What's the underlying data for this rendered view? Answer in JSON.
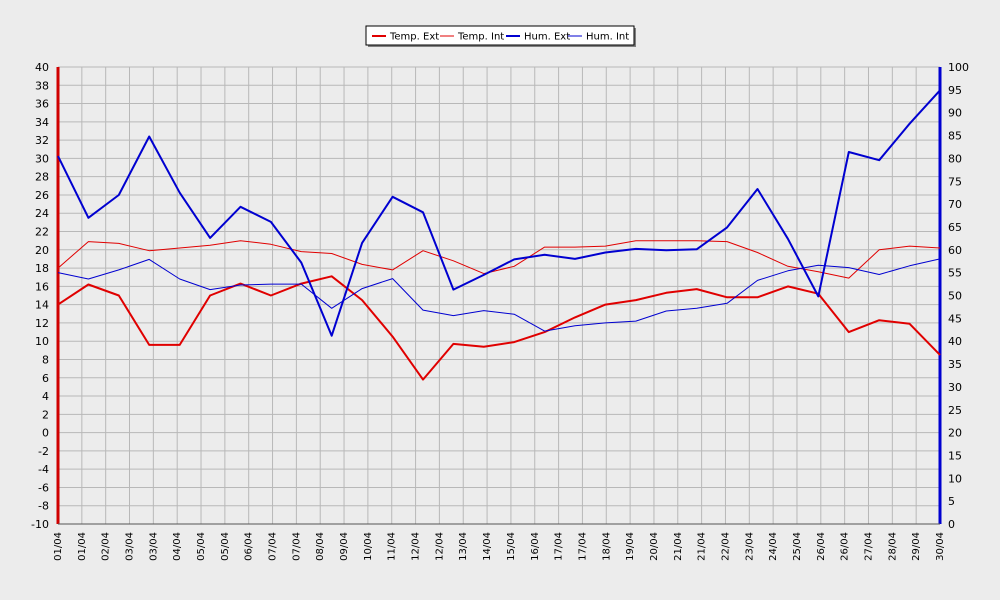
{
  "chart_data": {
    "type": "line",
    "categories": [
      "01/04",
      "01/04",
      "02/04",
      "03/04",
      "03/04",
      "04/04",
      "05/04",
      "05/04",
      "06/04",
      "07/04",
      "07/04",
      "08/04",
      "09/04",
      "10/04",
      "11/04",
      "12/04",
      "12/04",
      "13/04",
      "14/04",
      "15/04",
      "16/04",
      "17/04",
      "17/04",
      "18/04",
      "19/04",
      "20/04",
      "21/04",
      "21/04",
      "22/04",
      "23/04",
      "24/04",
      "25/04",
      "26/04",
      "26/04",
      "27/04",
      "28/04",
      "29/04",
      "30/04"
    ],
    "left_axis": {
      "min": -10,
      "max": 40,
      "step": 2
    },
    "right_axis": {
      "min": 0,
      "max": 100,
      "step": 5
    },
    "grid": true,
    "legend": {
      "placement": "top-center",
      "entries": [
        "Temp. Ext",
        "Temp. Int",
        "Hum. Ext",
        "Hum. Int"
      ]
    },
    "series": [
      {
        "name": "Temp. Ext",
        "axis": "left",
        "color": "#e00000",
        "width": 2,
        "points": [
          [
            0,
            14
          ],
          [
            1,
            16.2
          ],
          [
            2,
            15
          ],
          [
            3,
            9.6
          ],
          [
            4,
            9.6
          ],
          [
            5,
            15
          ],
          [
            6,
            16.3
          ],
          [
            7,
            15
          ],
          [
            8,
            16.3
          ],
          [
            9,
            17.1
          ],
          [
            10,
            14.5
          ],
          [
            11,
            10.5
          ],
          [
            12,
            5.8
          ],
          [
            13,
            9.7
          ],
          [
            14,
            9.4
          ],
          [
            15,
            9.9
          ],
          [
            16,
            11
          ],
          [
            17,
            12.6
          ],
          [
            18,
            14
          ],
          [
            19,
            14.5
          ],
          [
            20,
            15.3
          ],
          [
            21,
            15.7
          ],
          [
            22,
            14.8
          ],
          [
            23,
            14.8
          ],
          [
            24,
            16
          ],
          [
            25,
            15.2
          ],
          [
            26,
            11
          ],
          [
            27,
            12.3
          ],
          [
            28,
            11.9
          ],
          [
            29,
            8.5
          ]
        ]
      },
      {
        "name": "Temp. Int",
        "axis": "left",
        "color": "#e00000",
        "width": 1,
        "points": [
          [
            0,
            18
          ],
          [
            1,
            20.9
          ],
          [
            2,
            20.7
          ],
          [
            3,
            19.9
          ],
          [
            4,
            20.2
          ],
          [
            5,
            20.5
          ],
          [
            6,
            21
          ],
          [
            7,
            20.6
          ],
          [
            8,
            19.8
          ],
          [
            9,
            19.6
          ],
          [
            10,
            18.4
          ],
          [
            11,
            17.8
          ],
          [
            12,
            19.9
          ],
          [
            13,
            18.8
          ],
          [
            14,
            17.4
          ],
          [
            15,
            18.2
          ],
          [
            16,
            20.3
          ],
          [
            17,
            20.3
          ],
          [
            18,
            20.4
          ],
          [
            19,
            21
          ],
          [
            20,
            21
          ],
          [
            21,
            21
          ],
          [
            22,
            20.9
          ],
          [
            23,
            19.7
          ],
          [
            24,
            18.2
          ],
          [
            25,
            17.6
          ],
          [
            26,
            16.9
          ],
          [
            27,
            20
          ],
          [
            28,
            20.4
          ],
          [
            29,
            20.2
          ]
        ]
      },
      {
        "name": "Hum. Ext",
        "axis": "right",
        "color": "#0000d0",
        "width": 2,
        "points": [
          [
            0,
            80.5
          ],
          [
            1,
            67
          ],
          [
            2,
            72
          ],
          [
            3,
            84.8
          ],
          [
            4,
            72.5
          ],
          [
            5,
            62.6
          ],
          [
            6,
            69.4
          ],
          [
            7,
            66.1
          ],
          [
            8,
            57.2
          ],
          [
            9,
            41.2
          ],
          [
            10,
            61.5
          ],
          [
            11,
            71.6
          ],
          [
            12,
            68.2
          ],
          [
            13,
            51.3
          ],
          [
            14,
            54.5
          ],
          [
            15,
            57.9
          ],
          [
            16,
            58.9
          ],
          [
            17,
            58
          ],
          [
            18,
            59.4
          ],
          [
            19,
            60.2
          ],
          [
            20,
            59.9
          ],
          [
            21,
            60.1
          ],
          [
            22,
            64.9
          ],
          [
            23,
            73.3
          ],
          [
            24,
            62.4
          ],
          [
            25,
            49.8
          ],
          [
            26,
            81.4
          ],
          [
            27,
            79.6
          ],
          [
            28,
            87.6
          ],
          [
            29,
            94.9
          ]
        ]
      },
      {
        "name": "Hum. Int",
        "axis": "right",
        "color": "#0000d0",
        "width": 1,
        "points": [
          [
            0,
            55
          ],
          [
            1,
            53.6
          ],
          [
            2,
            55.6
          ],
          [
            3,
            57.9
          ],
          [
            4,
            53.6
          ],
          [
            5,
            51.3
          ],
          [
            6,
            52.3
          ],
          [
            7,
            52.5
          ],
          [
            8,
            52.5
          ],
          [
            9,
            47.2
          ],
          [
            10,
            51.5
          ],
          [
            11,
            53.7
          ],
          [
            12,
            46.8
          ],
          [
            13,
            45.6
          ],
          [
            14,
            46.7
          ],
          [
            15,
            45.9
          ],
          [
            16,
            42.2
          ],
          [
            17,
            43.4
          ],
          [
            18,
            44
          ],
          [
            19,
            44.4
          ],
          [
            20,
            46.6
          ],
          [
            21,
            47.2
          ],
          [
            22,
            48.3
          ],
          [
            23,
            53.3
          ],
          [
            24,
            55.4
          ],
          [
            25,
            56.6
          ],
          [
            26,
            56.1
          ],
          [
            27,
            54.6
          ],
          [
            28,
            56.5
          ],
          [
            29,
            58
          ]
        ]
      }
    ]
  }
}
